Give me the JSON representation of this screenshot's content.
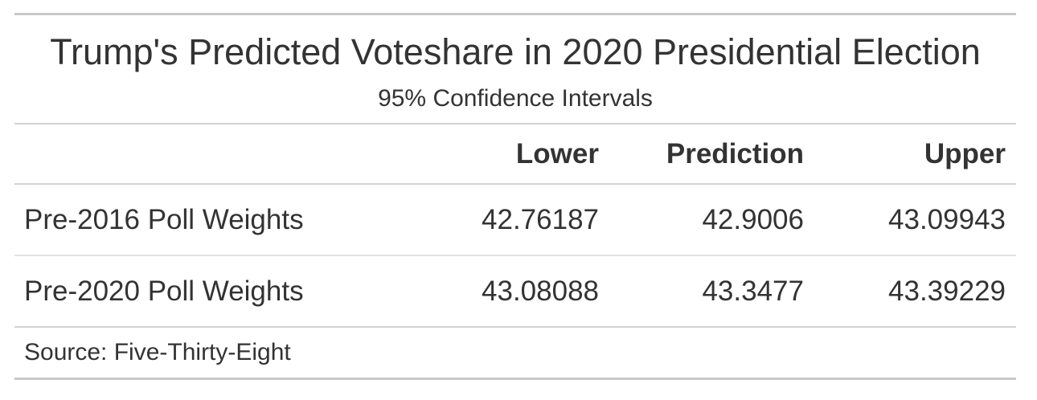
{
  "table": {
    "title": "Trump's Predicted Voteshare in 2020 Presidential Election",
    "subtitle": "95% Confidence Intervals",
    "columns": [
      "",
      "Lower",
      "Prediction",
      "Upper"
    ],
    "rows": [
      {
        "label": "Pre-2016 Poll Weights",
        "lower": "42.76187",
        "prediction": "42.9006",
        "upper": "43.09943"
      },
      {
        "label": "Pre-2020 Poll Weights",
        "lower": "43.08088",
        "prediction": "43.3477",
        "upper": "43.39229"
      }
    ],
    "source_note": "Source: Five-Thirty-Eight"
  }
}
